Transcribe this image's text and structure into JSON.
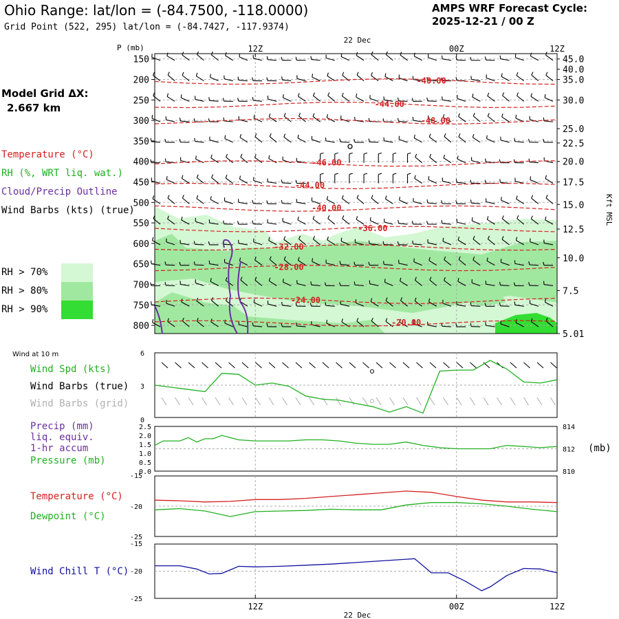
{
  "header": {
    "title": "Ohio Range:  lat/lon = (-84.7500, -118.0000)",
    "grid_point": "Grid Point (522, 295) lat/lon = (-84.7427, -117.9374)",
    "cycle_label": "AMPS WRF Forecast Cycle:",
    "cycle_value": "2025-12-21 / 00  Z"
  },
  "left_panel": {
    "model_grid_label": "Model Grid ΔX:",
    "model_grid_value": "2.667 km",
    "legend": [
      {
        "text": "Temperature (°C)",
        "color": "#d42020"
      },
      {
        "text": "RH (%, WRT liq. wat.)",
        "color": "#20b020"
      },
      {
        "text": "Cloud/Precip Outline",
        "color": "#6a2fa0"
      },
      {
        "text": "Wind Barbs (kts) (true)",
        "color": "#000000"
      }
    ],
    "rh_legend": [
      {
        "text": "RH > 70%",
        "color": "#d4f7d4"
      },
      {
        "text": "RH > 80%",
        "color": "#a0e8a0"
      },
      {
        "text": "RH > 90%",
        "color": "#33dd33"
      }
    ]
  },
  "time_axis": {
    "date_top": "22 Dec",
    "date_bottom": "22 Dec",
    "ticks": [
      "12Z",
      "00Z",
      "12Z"
    ]
  },
  "chart_data": [
    {
      "type": "heatmap",
      "title": "Vertical cross-section: temperature, RH, wind barbs",
      "ylabel": "P (mb)",
      "y2label": "Kft MSL",
      "pressure_levels": [
        150,
        200,
        250,
        300,
        350,
        400,
        450,
        500,
        550,
        600,
        650,
        700,
        750,
        800
      ],
      "height_labels": [
        "45.0",
        "40.0",
        "35.0",
        "30.0",
        "25.0",
        "22.5",
        "20.0",
        "17.5",
        "15.0",
        "12.5",
        "10.0",
        "7.5",
        "5.01"
      ],
      "height_values_kft": [
        45.0,
        40.0,
        35.0,
        30.0,
        25.0,
        22.5,
        20.0,
        17.5,
        15.0,
        12.5,
        10.0,
        7.5,
        5.01
      ],
      "ylim_mb": [
        137,
        820
      ],
      "x_hours": [
        0,
        48
      ],
      "temperature_contours": [
        {
          "label": "-40.00",
          "value": -40,
          "at_hour": 33,
          "at_mb": 205
        },
        {
          "label": "-44.00",
          "value": -44,
          "at_hour": 28,
          "at_mb": 262
        },
        {
          "label": "-48.00",
          "value": -48,
          "at_hour": 33.5,
          "at_mb": 302
        },
        {
          "label": "-46.00",
          "value": -46,
          "at_hour": 20.5,
          "at_mb": 405
        },
        {
          "label": "-44.00",
          "value": -44,
          "at_hour": 18.5,
          "at_mb": 460
        },
        {
          "label": "-40.00",
          "value": -40,
          "at_hour": 20.5,
          "at_mb": 515
        },
        {
          "label": "-36.00",
          "value": -36,
          "at_hour": 26,
          "at_mb": 565
        },
        {
          "label": "-32.00",
          "value": -32,
          "at_hour": 16,
          "at_mb": 610
        },
        {
          "label": "-28.00",
          "value": -28,
          "at_hour": 16,
          "at_mb": 660
        },
        {
          "label": "-24.00",
          "value": -24,
          "at_hour": 18,
          "at_mb": 740
        },
        {
          "label": "-20.00",
          "value": -20,
          "at_hour": 30,
          "at_mb": 795
        }
      ]
    },
    {
      "type": "line",
      "title": "Wind at 10 m",
      "series": [
        {
          "name": "Wind Spd (kts)",
          "color": "#20b020",
          "x": [
            0,
            3,
            6,
            8,
            10,
            12,
            14,
            16,
            18,
            20,
            22,
            24,
            26,
            28,
            30,
            32,
            34,
            36,
            38,
            40,
            42,
            44,
            46,
            48
          ],
          "values": [
            3.0,
            2.7,
            2.4,
            4.1,
            4.0,
            3.0,
            3.2,
            2.9,
            2.0,
            1.7,
            1.6,
            1.3,
            1.0,
            0.5,
            1.0,
            0.4,
            4.3,
            4.4,
            4.4,
            5.3,
            4.5,
            3.3,
            3.2,
            3.5
          ]
        }
      ],
      "ylim": [
        0,
        6
      ],
      "yticks": [
        "6",
        "3",
        "0"
      ],
      "legend": [
        "Wind Spd (kts)",
        "Wind Barbs (true)",
        "Wind Barbs (grid)"
      ]
    },
    {
      "type": "line",
      "title": "Precip and Pressure",
      "series": [
        {
          "name": "Pressure (mb)",
          "color": "#20b020",
          "x": [
            0,
            1,
            3,
            4,
            5,
            6,
            7,
            8,
            10,
            12,
            14,
            16,
            18,
            20,
            22,
            24,
            26,
            28,
            30,
            32,
            34,
            36,
            38,
            40,
            42,
            44,
            46,
            48
          ],
          "values": [
            812.3,
            812.7,
            812.7,
            813.0,
            812.6,
            812.9,
            812.9,
            813.2,
            812.8,
            812.7,
            812.7,
            812.7,
            812.8,
            812.8,
            812.7,
            812.5,
            812.4,
            812.4,
            812.6,
            812.3,
            812.1,
            812.0,
            812.0,
            812.0,
            812.3,
            812.2,
            812.1,
            812.2
          ]
        }
      ],
      "ylim": [
        0,
        2.5
      ],
      "yticks_left": [
        "2.5",
        "2.0",
        "1.5",
        "1.0",
        "0.5",
        "0.0"
      ],
      "y2lim": [
        810,
        814
      ],
      "yticks_right": [
        "814",
        "812",
        "810"
      ],
      "y2label": "(mb)",
      "legend": [
        "Precip (mm)",
        "liq. equiv.",
        "1-hr accum",
        "Pressure (mb)"
      ]
    },
    {
      "type": "line",
      "title": "Temperature and Dewpoint",
      "series": [
        {
          "name": "Temperature (°C)",
          "color": "#d42020",
          "x": [
            0,
            3,
            6,
            9,
            12,
            15,
            18,
            21,
            24,
            27,
            30,
            33,
            36,
            39,
            42,
            45,
            48
          ],
          "values": [
            -19.0,
            -19.1,
            -19.3,
            -19.2,
            -18.9,
            -18.9,
            -18.7,
            -18.4,
            -18.1,
            -17.8,
            -17.5,
            -17.7,
            -18.4,
            -19.0,
            -19.3,
            -19.3,
            -19.4
          ]
        },
        {
          "name": "Dewpoint (°C)",
          "color": "#20b020",
          "x": [
            0,
            3,
            6,
            9,
            12,
            15,
            18,
            21,
            24,
            27,
            30,
            33,
            36,
            39,
            42,
            45,
            48
          ],
          "values": [
            -20.6,
            -20.4,
            -20.8,
            -21.7,
            -20.9,
            -20.8,
            -20.7,
            -20.5,
            -20.6,
            -20.6,
            -19.8,
            -19.4,
            -19.4,
            -19.6,
            -20.0,
            -20.5,
            -20.9
          ]
        }
      ],
      "ylim": [
        -25,
        -15
      ],
      "yticks": [
        "-15",
        "-20",
        "-25"
      ],
      "legend": [
        "Temperature (°C)",
        "Dewpoint (°C)"
      ]
    },
    {
      "type": "line",
      "title": "Wind Chill",
      "series": [
        {
          "name": "Wind Chill T (°C)",
          "color": "#1010a0",
          "x": [
            0,
            3,
            5,
            6.5,
            8,
            10,
            12,
            15,
            18,
            21,
            24,
            27,
            30,
            31,
            33,
            35,
            37,
            39,
            40,
            42,
            44,
            46,
            48
          ],
          "values": [
            -19.0,
            -19.0,
            -19.6,
            -20.5,
            -20.4,
            -19.1,
            -19.2,
            -19.1,
            -18.9,
            -18.7,
            -18.4,
            -18.1,
            -17.8,
            -17.7,
            -20.3,
            -20.3,
            -21.8,
            -23.6,
            -22.9,
            -20.8,
            -19.5,
            -19.6,
            -20.3
          ]
        }
      ],
      "ylim": [
        -25,
        -15
      ],
      "yticks": [
        "-15",
        "-20",
        "-25"
      ],
      "legend": [
        "Wind Chill T (°C)"
      ]
    }
  ],
  "panels": {
    "wind_title": "Wind at 10 m",
    "wind_legend": [
      {
        "text": "Wind Spd (kts)",
        "color": "#20b020"
      },
      {
        "text": "Wind Barbs (true)",
        "color": "#000000"
      },
      {
        "text": "Wind Barbs (grid)",
        "color": "#b0b0b0"
      }
    ],
    "precip_legend": [
      {
        "text": "Precip (mm)",
        "color": "#6a2fa0"
      },
      {
        "text": "liq. equiv.",
        "color": "#6a2fa0"
      },
      {
        "text": "1-hr accum",
        "color": "#6a2fa0"
      },
      {
        "text": "Pressure (mb)",
        "color": "#20b020"
      }
    ],
    "pressure_unit": "(mb)",
    "temp_legend": [
      {
        "text": "Temperature (°C)",
        "color": "#d42020"
      },
      {
        "text": "Dewpoint (°C)",
        "color": "#20b020"
      }
    ],
    "chill_legend": [
      {
        "text": "Wind Chill T (°C)",
        "color": "#1010a0"
      }
    ]
  }
}
